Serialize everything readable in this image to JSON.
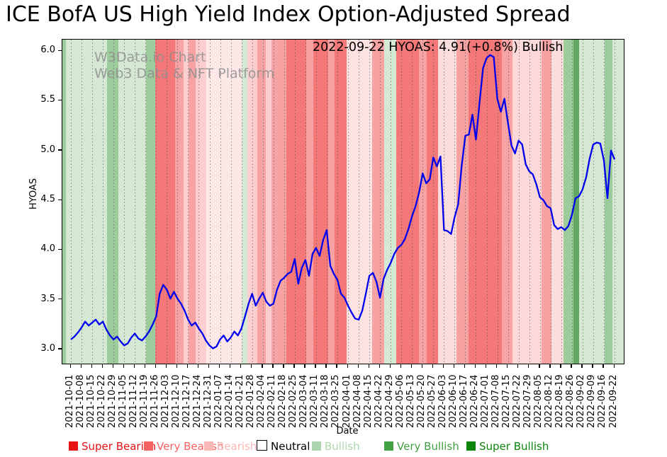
{
  "title": "ICE BofA US High Yield Index Option-Adjusted Spread",
  "annotation": {
    "text": "2022-09-22 HYOAS: 4.91(+0.8%) Bullish"
  },
  "watermark": {
    "line1": "W3Data.io Chart",
    "line2": "Web3 Data & NFT Platform"
  },
  "chart_data": {
    "type": "line",
    "title": "ICE BofA US High Yield Index Option-Adjusted Spread",
    "xlabel": "Date",
    "ylabel": "HYOAS",
    "ylim": [
      2.843,
      6.115
    ],
    "yticks": [
      3.0,
      3.5,
      4.0,
      4.5,
      5.0,
      5.5,
      6.0
    ],
    "grid": "vertical-dotted-weekly",
    "legend_position": "bottom",
    "x_tick_labels": [
      "2021-10-01",
      "2021-10-08",
      "2021-10-15",
      "2021-10-22",
      "2021-10-29",
      "2021-11-05",
      "2021-11-12",
      "2021-11-19",
      "2021-11-26",
      "2021-12-03",
      "2021-12-10",
      "2021-12-17",
      "2021-12-24",
      "2021-12-31",
      "2022-01-07",
      "2022-01-14",
      "2022-01-21",
      "2022-01-28",
      "2022-02-04",
      "2022-02-11",
      "2022-02-18",
      "2022-02-25",
      "2022-03-04",
      "2022-03-11",
      "2022-03-18",
      "2022-03-25",
      "2022-04-01",
      "2022-04-08",
      "2022-04-15",
      "2022-04-22",
      "2022-04-29",
      "2022-05-06",
      "2022-05-13",
      "2022-05-20",
      "2022-05-27",
      "2022-06-03",
      "2022-06-10",
      "2022-06-17",
      "2022-06-24",
      "2022-07-01",
      "2022-07-08",
      "2022-07-15",
      "2022-07-22",
      "2022-07-29",
      "2022-08-05",
      "2022-08-12",
      "2022-08-19",
      "2022-08-26",
      "2022-09-02",
      "2022-09-09",
      "2022-09-16",
      "2022-09-22"
    ],
    "series": [
      {
        "name": "HYOAS",
        "color": "#0000ee",
        "values": [
          3.1,
          3.13,
          3.17,
          3.22,
          3.28,
          3.24,
          3.27,
          3.3,
          3.25,
          3.28,
          3.2,
          3.14,
          3.1,
          3.13,
          3.08,
          3.04,
          3.06,
          3.12,
          3.16,
          3.11,
          3.09,
          3.13,
          3.18,
          3.25,
          3.33,
          3.56,
          3.65,
          3.6,
          3.51,
          3.58,
          3.51,
          3.46,
          3.39,
          3.3,
          3.24,
          3.27,
          3.21,
          3.16,
          3.09,
          3.04,
          3.01,
          3.03,
          3.1,
          3.14,
          3.08,
          3.12,
          3.18,
          3.14,
          3.21,
          3.33,
          3.46,
          3.56,
          3.44,
          3.51,
          3.57,
          3.48,
          3.44,
          3.46,
          3.6,
          3.69,
          3.72,
          3.76,
          3.78,
          3.91,
          3.66,
          3.82,
          3.9,
          3.74,
          3.96,
          4.02,
          3.94,
          4.1,
          4.2,
          3.84,
          3.76,
          3.7,
          3.56,
          3.52,
          3.44,
          3.37,
          3.31,
          3.3,
          3.39,
          3.56,
          3.74,
          3.77,
          3.68,
          3.52,
          3.71,
          3.8,
          3.87,
          3.96,
          4.02,
          4.05,
          4.11,
          4.21,
          4.34,
          4.44,
          4.58,
          4.77,
          4.67,
          4.71,
          4.93,
          4.84,
          4.94,
          4.2,
          4.19,
          4.16,
          4.33,
          4.46,
          4.85,
          5.15,
          5.16,
          5.36,
          5.11,
          5.48,
          5.83,
          5.93,
          5.96,
          5.94,
          5.52,
          5.39,
          5.52,
          5.28,
          5.05,
          4.97,
          5.1,
          5.06,
          4.86,
          4.79,
          4.76,
          4.66,
          4.53,
          4.5,
          4.44,
          4.42,
          4.25,
          4.21,
          4.23,
          4.2,
          4.24,
          4.35,
          4.52,
          4.54,
          4.61,
          4.73,
          4.92,
          5.06,
          5.08,
          5.07,
          4.9,
          4.52,
          5.0,
          4.91
        ]
      }
    ],
    "last_point": {
      "date": "2022-09-22",
      "value": 4.91,
      "change_pct": "+0.8%",
      "sentiment": "Bullish"
    },
    "band_colors": {
      "super_bearish": "#f57878",
      "very_bearish": "#f8a3a3",
      "bearish": "#fbcfcf",
      "neutral": "#ffffff",
      "bullish": "#d4e8d4",
      "very_bullish": "#9ccb9c",
      "super_bullish": "#63a963"
    },
    "bands": [
      [
        0,
        5,
        "very_bullish",
        1
      ],
      [
        5,
        63,
        "bullish",
        1
      ],
      [
        63,
        79,
        "very_bullish",
        1
      ],
      [
        79,
        118,
        "bullish",
        1
      ],
      [
        118,
        131,
        "very_bullish",
        1
      ],
      [
        131,
        159,
        "super_bearish",
        1
      ],
      [
        159,
        171,
        "very_bearish",
        1
      ],
      [
        171,
        178,
        "bearish",
        1
      ],
      [
        178,
        188,
        "very_bearish",
        1
      ],
      [
        188,
        203,
        "bearish",
        1
      ],
      [
        203,
        253,
        "bearish",
        0.5
      ],
      [
        253,
        261,
        "bullish",
        1
      ],
      [
        261,
        275,
        "bearish",
        1
      ],
      [
        275,
        287,
        "very_bearish",
        1
      ],
      [
        287,
        295,
        "bearish",
        1
      ],
      [
        295,
        316,
        "very_bearish",
        1
      ],
      [
        316,
        344,
        "super_bearish",
        1
      ],
      [
        344,
        354,
        "very_bearish",
        1
      ],
      [
        354,
        375,
        "super_bearish",
        1
      ],
      [
        375,
        384,
        "very_bearish",
        1
      ],
      [
        384,
        401,
        "super_bearish",
        1
      ],
      [
        401,
        437,
        "bearish",
        0.6
      ],
      [
        437,
        454,
        "very_bearish",
        1
      ],
      [
        454,
        471,
        "bullish",
        1
      ],
      [
        471,
        503,
        "super_bearish",
        1
      ],
      [
        503,
        514,
        "very_bearish",
        1
      ],
      [
        514,
        530,
        "super_bearish",
        1
      ],
      [
        530,
        556,
        "bearish",
        0.7
      ],
      [
        556,
        573,
        "very_bearish",
        1
      ],
      [
        573,
        620,
        "super_bearish",
        1
      ],
      [
        620,
        635,
        "very_bearish",
        1
      ],
      [
        635,
        676,
        "bearish",
        0.8
      ],
      [
        676,
        690,
        "very_bearish",
        1
      ],
      [
        690,
        707,
        "bearish",
        0.7
      ],
      [
        707,
        721,
        "very_bullish",
        1
      ],
      [
        721,
        729,
        "super_bullish",
        1
      ],
      [
        729,
        765,
        "bullish",
        1
      ],
      [
        765,
        776,
        "very_bullish",
        1
      ],
      [
        776,
        794,
        "bullish",
        1
      ]
    ]
  },
  "legend": {
    "items": [
      {
        "label": "Super Bearish",
        "x": 97,
        "color": "#e81313",
        "swatch": "#e81313",
        "swatch_border": "none"
      },
      {
        "label": "Very Bearish",
        "x": 203,
        "color": "#f56262",
        "swatch": "#f56262",
        "swatch_border": "none"
      },
      {
        "label": "Bearish",
        "x": 288,
        "color": "#f8b8b8",
        "swatch": "#f8b8b8",
        "swatch_border": "none"
      },
      {
        "label": "Neutral",
        "x": 362,
        "color": "#000000",
        "swatch": "#ffffff",
        "swatch_border": "1px solid #000"
      },
      {
        "label": "Bullish",
        "x": 440,
        "color": "#aed6ae",
        "swatch": "#aed6ae",
        "swatch_border": "none"
      },
      {
        "label": "Very Bullish",
        "x": 542,
        "color": "#43a043",
        "swatch": "#43a043",
        "swatch_border": "none"
      },
      {
        "label": "Super Bullish",
        "x": 658,
        "color": "#0c850c",
        "swatch": "#0c850c",
        "swatch_border": "none"
      }
    ]
  }
}
